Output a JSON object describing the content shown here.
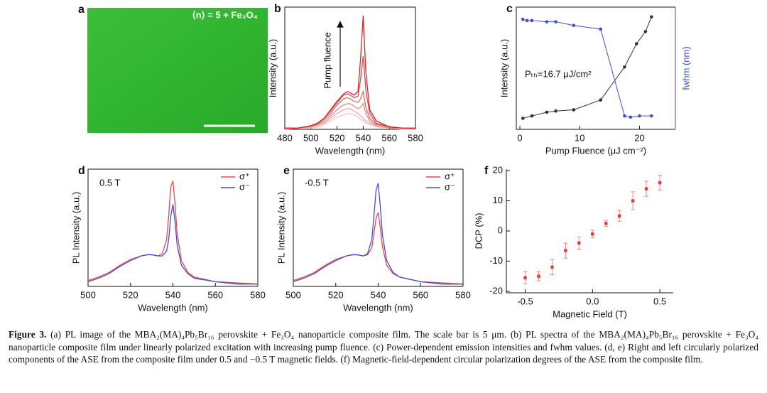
{
  "chart_data": [
    {
      "type": "image",
      "label": "a",
      "annotation": "⟨n⟩ = 5 + Fe₃O₄"
    },
    {
      "type": "line",
      "label": "b",
      "xlabel": "Wavelength (nm)",
      "ylabel": "Intensity (a.u.)",
      "annotation": "Pump fluence",
      "x": [
        480,
        490,
        500,
        505,
        510,
        515,
        520,
        525,
        528,
        530,
        533,
        536,
        538,
        540,
        542,
        545,
        550,
        560,
        570,
        580
      ],
      "xlim": [
        480,
        580
      ],
      "xticks": [
        480,
        500,
        520,
        540,
        560,
        580
      ],
      "ylim": [
        0,
        100
      ],
      "series": [
        {
          "color": "#f6c4c4",
          "values": [
            0,
            1,
            1,
            2,
            4,
            7,
            10,
            12,
            13,
            13,
            12,
            10,
            8,
            7,
            5,
            4,
            2,
            1,
            0,
            0
          ]
        },
        {
          "color": "#f0a8a8",
          "values": [
            0,
            1,
            2,
            3,
            5,
            9,
            13,
            16,
            17,
            17,
            15,
            13,
            11,
            9,
            7,
            5,
            3,
            1,
            1,
            0
          ]
        },
        {
          "color": "#e98a8a",
          "values": [
            0,
            1,
            2,
            4,
            6,
            11,
            16,
            20,
            21,
            21,
            19,
            17,
            18,
            21,
            13,
            7,
            3,
            1,
            1,
            0
          ]
        },
        {
          "color": "#e26a6a",
          "values": [
            1,
            1,
            3,
            4,
            8,
            13,
            20,
            25,
            26,
            25,
            23,
            22,
            25,
            31,
            18,
            9,
            4,
            2,
            1,
            1
          ]
        },
        {
          "color": "#dc4848",
          "values": [
            1,
            1,
            3,
            5,
            9,
            15,
            22,
            28,
            29,
            28,
            26,
            27,
            41,
            60,
            32,
            13,
            5,
            2,
            1,
            1
          ]
        },
        {
          "color": "#d62626",
          "values": [
            1,
            1,
            3,
            5,
            9,
            16,
            23,
            29,
            31,
            30,
            28,
            31,
            58,
            93,
            47,
            16,
            7,
            2,
            1,
            1
          ]
        }
      ]
    },
    {
      "type": "line",
      "label": "c",
      "xlabel": "Pump Fluence (μJ cm⁻²)",
      "ylabel": "Intensity (a.u.)",
      "y2label": "fwhm (nm)",
      "annotation": "Pₜₕ=16.7 μJ/cm²",
      "markers": true,
      "xlim": [
        -0.6,
        26
      ],
      "xticks": [
        0,
        10,
        20
      ],
      "ylim": [
        0,
        100
      ],
      "y2lim": [
        0,
        100
      ],
      "series": [
        {
          "color": "#333333",
          "x": [
            0.5,
            2,
            4.5,
            6,
            9,
            13.5,
            17.5,
            19.5,
            21,
            22
          ],
          "values": [
            9,
            11,
            14,
            15,
            16,
            24,
            51,
            70,
            80,
            92
          ]
        },
        {
          "color": "#3b4fd8",
          "axis": "y2",
          "x": [
            0.5,
            1.2,
            2,
            4.5,
            6,
            9,
            13.5,
            17.5,
            18.5,
            20,
            22
          ],
          "values": [
            90,
            89,
            89,
            88,
            88,
            85,
            82,
            11,
            10,
            11,
            11
          ]
        }
      ]
    },
    {
      "type": "line",
      "label": "d",
      "xlabel": "Wavelength (nm)",
      "ylabel": "PL Intensity (a.u.)",
      "annotation": "0.5 T",
      "legend": "upper right",
      "x": [
        500,
        505,
        510,
        515,
        520,
        525,
        528,
        530,
        533,
        535,
        537,
        538,
        539,
        540,
        541,
        542,
        544,
        547,
        550,
        560,
        570,
        580
      ],
      "xlim": [
        500,
        580
      ],
      "xticks": [
        500,
        520,
        540,
        560,
        580
      ],
      "ylim": [
        0,
        100
      ],
      "series": [
        {
          "name": "σ⁺",
          "color": "#e8474a",
          "values": [
            5,
            8,
            12,
            18,
            23,
            26,
            27,
            27,
            26,
            28,
            40,
            60,
            85,
            90,
            70,
            45,
            22,
            12,
            8,
            4,
            3,
            2
          ]
        },
        {
          "name": "σ⁻",
          "color": "#4a4ad8",
          "values": [
            4,
            7,
            11,
            17,
            22,
            26,
            27,
            27,
            26,
            26,
            30,
            40,
            60,
            70,
            55,
            35,
            18,
            11,
            7,
            4,
            2,
            2
          ]
        }
      ]
    },
    {
      "type": "line",
      "label": "e",
      "xlabel": "Wavelength (nm)",
      "ylabel": "PL Intensity (a.u.)",
      "annotation": "-0.5 T",
      "legend": "upper right",
      "x": [
        500,
        505,
        510,
        515,
        520,
        525,
        528,
        530,
        533,
        535,
        537,
        538,
        539,
        540,
        541,
        542,
        544,
        547,
        550,
        560,
        570,
        580
      ],
      "xlim": [
        500,
        580
      ],
      "xticks": [
        500,
        520,
        540,
        560,
        580
      ],
      "ylim": [
        0,
        100
      ],
      "series": [
        {
          "name": "σ⁺",
          "color": "#e8474a",
          "values": [
            5,
            8,
            12,
            18,
            23,
            26,
            27,
            27,
            26,
            27,
            33,
            45,
            58,
            63,
            50,
            34,
            18,
            11,
            8,
            4,
            3,
            2
          ]
        },
        {
          "name": "σ⁻",
          "color": "#4a4ad8",
          "values": [
            4,
            7,
            11,
            17,
            22,
            26,
            27,
            27,
            26,
            28,
            40,
            60,
            82,
            88,
            68,
            44,
            22,
            12,
            8,
            4,
            2,
            2
          ]
        }
      ]
    },
    {
      "type": "scatter",
      "label": "f",
      "xlabel": "Magnetic Field (T)",
      "ylabel": "DCP (%)",
      "xlim": [
        -0.64,
        0.6
      ],
      "xticks": [
        -0.5,
        {
          "value": 0,
          "label": "0.0"
        },
        0.5
      ],
      "ylim": [
        -20.5,
        20.5
      ],
      "yticks": [
        -20,
        -10,
        0,
        10,
        20
      ],
      "series": [
        {
          "color": "#e53935",
          "x": [
            -0.5,
            -0.4,
            -0.3,
            -0.2,
            -0.1,
            0,
            0.1,
            0.2,
            0.3,
            0.4,
            0.5
          ],
          "values": [
            -15.5,
            -15,
            -12,
            -6.5,
            -4,
            -1,
            2.5,
            5,
            10,
            14,
            16
          ],
          "errors": [
            2,
            1.5,
            2.5,
            2.5,
            2,
            1.2,
            1,
            1.8,
            3,
            2.5,
            2.5
          ]
        }
      ]
    }
  ],
  "caption": {
    "label": "Figure 3.",
    "text": "(a) PL image of the MBA₂(MA)₄Pb₅Br₁₆ perovskite + Fe₃O₄ nanoparticle composite film. The scale bar is 5 μm. (b) PL spectra of the MBA₂(MA)₄Pb₅Br₁₆ perovskite + Fe₃O₄ nanoparticle composite film under linearly polarized excitation with increasing pump fluence. (c) Power-dependent emission intensities and fwhm values. (d, e) Right and left circularly polarized components of the ASE from the composite film under 0.5 and −0.5 T magnetic fields. (f) Magnetic-field-dependent circular polarization degrees of the ASE from the composite film."
  }
}
